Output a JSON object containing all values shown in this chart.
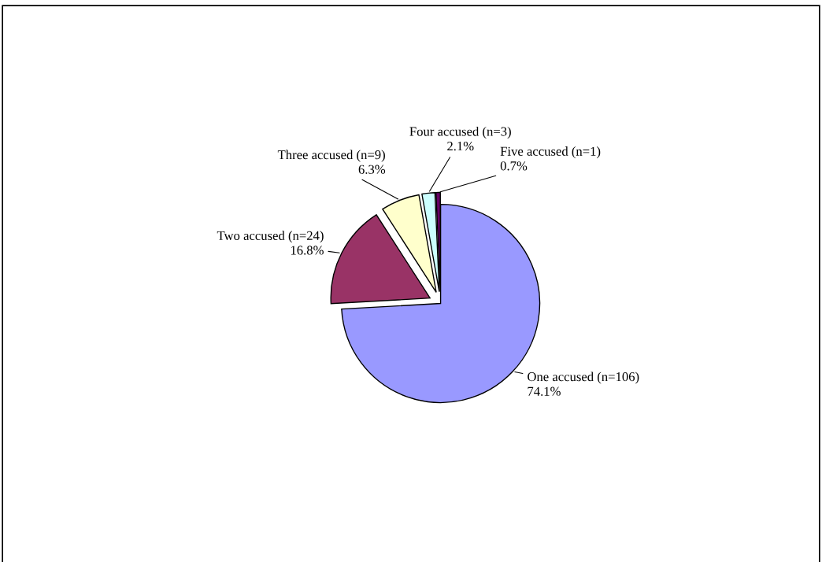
{
  "chart_data": {
    "type": "pie",
    "categories": [
      "One accused (n=106)",
      "Two accused (n=24)",
      "Three accused (n=9)",
      "Four accused (n=3)",
      "Five accused (n=1)"
    ],
    "values": [
      74.1,
      16.8,
      6.3,
      2.1,
      0.7
    ],
    "value_labels": [
      "74.1%",
      "16.8%",
      "6.3%",
      "2.1%",
      "0.7%"
    ],
    "colors": [
      "#9999ff",
      "#993366",
      "#ffffcc",
      "#ccffff",
      "#660066"
    ],
    "legend": false
  }
}
